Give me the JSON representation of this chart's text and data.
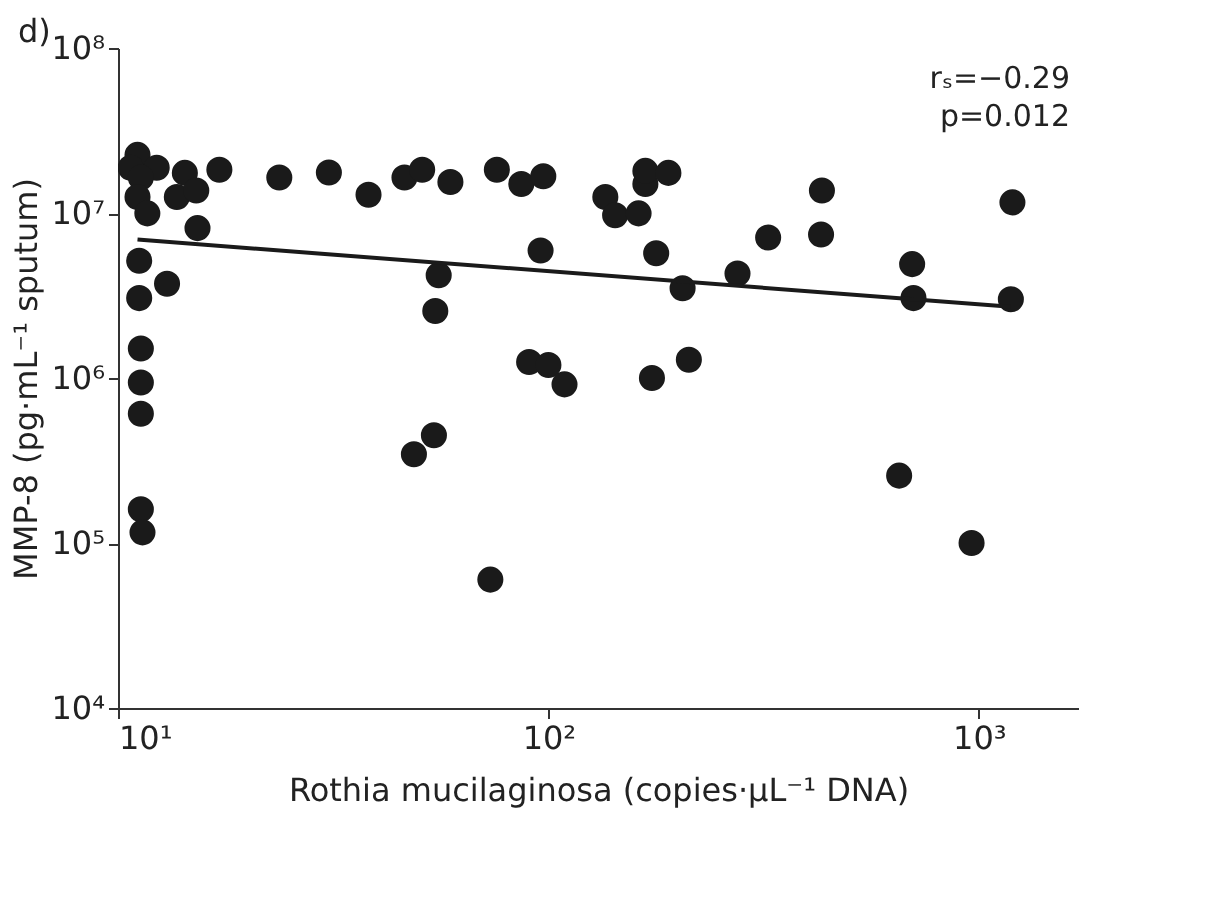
{
  "chart_data": {
    "type": "scatter",
    "title": "d)",
    "xlabel": "Rothia mucilaginosa (copies·µL⁻¹ DNA)",
    "ylabel": "MMP-8 (pg·mL⁻¹ sputum)",
    "log": "xy",
    "xlim": [
      10,
      1700
    ],
    "ylim": [
      10000,
      100000000
    ],
    "xticks": [
      {
        "value": 10,
        "label": "10¹"
      },
      {
        "value": 100,
        "label": "10²"
      },
      {
        "value": 1000,
        "label": "10³"
      }
    ],
    "yticks": [
      {
        "value": 10000,
        "label": "10⁴"
      },
      {
        "value": 100000,
        "label": "10⁵"
      },
      {
        "value": 1000000,
        "label": "10⁶"
      },
      {
        "value": 10000000,
        "label": "10⁷"
      },
      {
        "value": 100000000,
        "label": "10⁸"
      }
    ],
    "grid": false,
    "annotations": [
      "rₛ=−0.29",
      "p=0.012"
    ],
    "series": [
      {
        "marker": "circle",
        "color": "#1a1a1a",
        "x": [
          11.1,
          10.7,
          12.3,
          11.3,
          11.1,
          11.7,
          13.7,
          14.3,
          15.2,
          15.3,
          17.2,
          23.7,
          30.9,
          38.2,
          46.3,
          50.9,
          59.2,
          75.9,
          86.5,
          97.3,
          95.9,
          11.2,
          11.2,
          13.0,
          11.3,
          11.3,
          11.3,
          11.3,
          11.4,
          55.6,
          54.6,
          90.2,
          100,
          109,
          54.2,
          48.7,
          73.3,
          135.6,
          142.9,
          162,
          168,
          168,
          190,
          178,
          205,
          174,
          212,
          275,
          324,
          432,
          430,
          700,
          705,
          653,
          962,
          1197,
          1187
        ],
        "values": [
          22500000,
          18800000,
          18800000,
          16400000,
          12500000,
          9950000,
          12500000,
          17500000,
          13700000,
          8100000,
          18300000,
          16400000,
          17600000,
          12900000,
          16400000,
          18300000,
          15400000,
          18300000,
          15000000,
          16700000,
          5930000,
          5130000,
          3050000,
          3730000,
          1510000,
          940000,
          607000,
          160000,
          116000,
          4200000,
          2550000,
          1250000,
          1200000,
          915000,
          450000,
          345000,
          60000,
          12500000,
          9700000,
          9950000,
          15000000,
          18000000,
          17500000,
          5700000,
          3500000,
          1000000,
          1290000,
          4300000,
          7100000,
          13700000,
          7400000,
          4900000,
          3050000,
          256000,
          100000,
          11600000,
          3000000
        ]
      },
      {
        "type": "line",
        "line_style": "solid",
        "color": "#1a1a1a",
        "x": [
          11.1,
          1187
        ],
        "values": [
          6900000,
          2700000
        ]
      }
    ]
  }
}
